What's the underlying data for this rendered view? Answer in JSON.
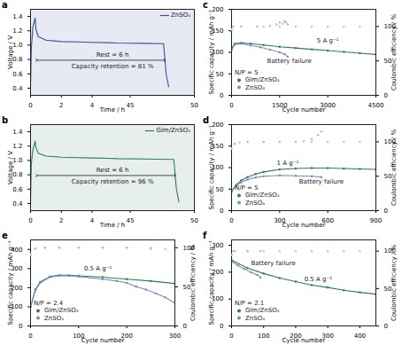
{
  "chart_data": [
    {
      "type": "line",
      "title": "a",
      "x_label": "Time / h",
      "y_label": "Voltage / V",
      "xlim": [
        0,
        50
      ],
      "xbreak": [
        5,
        44
      ],
      "xticks": [
        0,
        2,
        4,
        45,
        50
      ],
      "ylim": [
        0.3,
        1.5
      ],
      "yticks": [
        0.4,
        0.6,
        0.8,
        {
          "value": 1,
          "label": "1.0"
        },
        1.2,
        1.4
      ],
      "legend": "top-right",
      "series": [
        {
          "name": "ZnSO₄",
          "color": "#3b4f9e",
          "line_style": "solid",
          "marker": "none",
          "x": [
            0,
            0.05,
            0.15,
            0.3,
            0.35,
            0.5,
            1,
            2,
            3,
            4,
            5,
            44,
            46,
            47.6,
            47.8,
            48
          ],
          "values": [
            0.42,
            0.95,
            1.25,
            1.38,
            1.22,
            1.12,
            1.07,
            1.05,
            1.045,
            1.04,
            1.035,
            1.03,
            1.025,
            1.02,
            0.6,
            0.42
          ]
        }
      ],
      "annotations": [
        {
          "text": "Rest = 6 h",
          "x": 25,
          "y": 0.86
        },
        {
          "text": "Capacity retention = 81 %",
          "x": 25,
          "y": 0.7
        }
      ],
      "rest_span": {
        "x": [
          0.4,
          47.7
        ],
        "y": 0.79
      }
    },
    {
      "type": "line",
      "title": "b",
      "x_label": "Time / h",
      "y_label": "Voltage / V",
      "xlim": [
        0,
        50
      ],
      "xbreak": [
        5,
        44
      ],
      "xticks": [
        0,
        2,
        4,
        45,
        50
      ],
      "ylim": [
        0.3,
        1.5
      ],
      "yticks": [
        0.4,
        0.6,
        0.8,
        {
          "value": 1,
          "label": "1.0"
        },
        1.2,
        1.4
      ],
      "legend": "top-right",
      "series": [
        {
          "name": "Glm/ZnSO₄",
          "color": "#2f7a5c",
          "line_style": "solid",
          "marker": "none",
          "x": [
            0,
            0.05,
            0.15,
            0.3,
            0.35,
            0.5,
            1,
            2,
            3,
            4,
            5,
            44,
            46,
            48.4,
            48.6,
            48.8
          ],
          "values": [
            0.42,
            0.95,
            1.15,
            1.27,
            1.18,
            1.1,
            1.06,
            1.045,
            1.04,
            1.035,
            1.03,
            1.025,
            1.02,
            1.015,
            0.6,
            0.42
          ]
        }
      ],
      "annotations": [
        {
          "text": "Rest = 6 h",
          "x": 25,
          "y": 0.86
        },
        {
          "text": "Capacity retention = 96 %",
          "x": 25,
          "y": 0.7
        }
      ],
      "rest_span": {
        "x": [
          0.4,
          48.5
        ],
        "y": 0.79
      }
    },
    {
      "type": "scatter",
      "title": "c",
      "x_label": "Cycle number",
      "y_label": "Specific capacity / mAh g⁻¹",
      "y2_label": "Coulombic efficiency / %",
      "xlim": [
        0,
        4500
      ],
      "xticks": [
        0,
        1500,
        3000,
        4500
      ],
      "ylim": [
        0,
        200
      ],
      "yticks": [
        0,
        50,
        100,
        150,
        200
      ],
      "y2lim": [
        0,
        125
      ],
      "y2ticks": [
        0,
        50,
        100
      ],
      "legend": "bottom-left",
      "legend_title": "N/P = 5",
      "series": [
        {
          "name": "Glm/ZnSO₄",
          "color": "#2e7d4f",
          "line_style": "solid",
          "marker": "circle",
          "x": [
            0,
            100,
            300,
            600,
            1000,
            1500,
            2000,
            2500,
            3000,
            3500,
            4000,
            4500
          ],
          "values": [
            108,
            120,
            122,
            120,
            117,
            113,
            110,
            107,
            104,
            101,
            98,
            95
          ]
        },
        {
          "name": "ZnSO₄",
          "color": "#7a8cc8",
          "line_style": "solid",
          "marker": "circle",
          "x": [
            0,
            100,
            300,
            600,
            900,
            1200,
            1500,
            1650,
            1750
          ],
          "values": [
            105,
            118,
            120,
            116,
            112,
            106,
            100,
            96,
            90
          ]
        },
        {
          "name": "Glm/ZnSO₄",
          "axis": "y2",
          "color": "#a8d8a0",
          "line_style": "none",
          "marker": "circle",
          "x": [
            0,
            50,
            300,
            1000,
            1500,
            2000,
            2500,
            3000,
            3500,
            4000,
            4500
          ],
          "values": [
            96,
            100,
            100,
            100,
            100,
            100,
            100,
            100,
            100,
            100,
            100
          ]
        },
        {
          "name": "ZnSO₄",
          "axis": "y2",
          "color": "#aab8e6",
          "line_style": "none",
          "marker": "circle",
          "x": [
            0,
            50,
            300,
            800,
            1200,
            1400,
            1500,
            1600,
            1650,
            1700,
            1750
          ],
          "values": [
            95,
            100,
            100,
            100,
            101,
            103,
            106,
            104,
            108,
            106,
            103
          ]
        }
      ],
      "annotations": [
        {
          "text": "5 A g⁻¹",
          "x": 3000,
          "y": 128
        },
        {
          "text": "Battery failure",
          "x": 1800,
          "y": 80
        }
      ]
    },
    {
      "type": "scatter",
      "title": "d",
      "x_label": "Cycle number",
      "y_label": "Specific capacity / mAh g⁻¹",
      "y2_label": "Coulombic efficiency / %",
      "xlim": [
        0,
        900
      ],
      "xticks": [
        0,
        300,
        600,
        900
      ],
      "ylim": [
        0,
        200
      ],
      "yticks": [
        0,
        50,
        100,
        150,
        200
      ],
      "y2lim": [
        0,
        125
      ],
      "y2ticks": [
        0,
        50,
        100
      ],
      "legend": "bottom-left",
      "legend_title": "N/P = 5",
      "series": [
        {
          "name": "Glm/ZnSO₄",
          "color": "#2e7d4f",
          "line_style": "solid",
          "marker": "circle",
          "x": [
            0,
            30,
            60,
            100,
            150,
            200,
            300,
            400,
            500,
            600,
            700,
            800,
            900
          ],
          "values": [
            45,
            60,
            70,
            78,
            85,
            90,
            96,
            98,
            99,
            99,
            98,
            97,
            96
          ]
        },
        {
          "name": "ZnSO₄",
          "color": "#7a8cc8",
          "line_style": "solid",
          "marker": "circle",
          "x": [
            0,
            30,
            60,
            100,
            150,
            200,
            300,
            400,
            500,
            560
          ],
          "values": [
            45,
            58,
            66,
            72,
            77,
            80,
            82,
            81,
            80,
            78
          ]
        },
        {
          "name": "Glm/ZnSO₄",
          "axis": "y2",
          "color": "#a8d8a0",
          "line_style": "none",
          "marker": "circle",
          "x": [
            0,
            20,
            50,
            100,
            200,
            300,
            400,
            500,
            600,
            700,
            800,
            900
          ],
          "values": [
            90,
            97,
            99,
            100,
            100,
            100,
            100,
            100,
            100,
            100,
            100,
            100
          ]
        },
        {
          "name": "ZnSO₄",
          "axis": "y2",
          "color": "#aab8e6",
          "line_style": "none",
          "marker": "circle",
          "x": [
            0,
            20,
            100,
            200,
            300,
            400,
            450,
            500,
            540,
            560
          ],
          "values": [
            90,
            97,
            100,
            100,
            100,
            100,
            101,
            104,
            110,
            115
          ]
        }
      ],
      "annotations": [
        {
          "text": "1 A g⁻¹",
          "x": 350,
          "y": 110
        },
        {
          "text": "Battery failure",
          "x": 560,
          "y": 68
        }
      ]
    },
    {
      "type": "scatter",
      "title": "e",
      "x_label": "Cycle number",
      "y_label": "Specific capacity / mAh g⁻¹",
      "y2_label": "Coulombic efficiency / %",
      "xlim": [
        0,
        300
      ],
      "xticks": [
        0,
        100,
        200,
        300
      ],
      "ylim": [
        0,
        450
      ],
      "yticks": [
        0,
        100,
        200,
        300,
        400
      ],
      "y2lim": [
        0,
        110
      ],
      "y2ticks": [
        0,
        50,
        100
      ],
      "legend": "bottom-left",
      "legend_title": "N/P = 2.4",
      "series": [
        {
          "name": "Glm/ZnSO₄",
          "color": "#2e7d4f",
          "line_style": "solid",
          "marker": "circle",
          "x": [
            0,
            10,
            20,
            40,
            60,
            80,
            100,
            150,
            200,
            250,
            300
          ],
          "values": [
            100,
            190,
            230,
            258,
            265,
            265,
            262,
            255,
            245,
            235,
            222
          ]
        },
        {
          "name": "ZnSO₄",
          "color": "#7a8cc8",
          "line_style": "solid",
          "marker": "circle",
          "x": [
            0,
            10,
            20,
            40,
            60,
            80,
            100,
            150,
            180,
            200,
            220,
            240,
            260,
            280,
            300
          ],
          "values": [
            100,
            185,
            225,
            255,
            262,
            262,
            258,
            245,
            235,
            225,
            205,
            190,
            170,
            150,
            120
          ]
        },
        {
          "name": "Glm/ZnSO₄",
          "axis": "y2",
          "color": "#a8d8a0",
          "line_style": "none",
          "marker": "circle",
          "x": [
            0,
            10,
            30,
            60,
            100,
            150,
            200,
            250,
            300
          ],
          "values": [
            92,
            99,
            100,
            100,
            100,
            100,
            100,
            100,
            100
          ]
        },
        {
          "name": "ZnSO₄",
          "axis": "y2",
          "color": "#aab8e6",
          "line_style": "none",
          "marker": "circle",
          "x": [
            0,
            10,
            30,
            60,
            100,
            150,
            200,
            250,
            280,
            300
          ],
          "values": [
            90,
            99,
            100,
            100,
            100,
            100,
            100,
            99,
            98,
            97
          ]
        }
      ],
      "annotations": [
        {
          "text": "0.5 A g⁻¹",
          "x": 140,
          "y": 300
        }
      ]
    },
    {
      "type": "scatter",
      "title": "f",
      "x_label": "Cycle number",
      "y_label": "Specific capacity / mAh g⁻¹",
      "y2_label": "Coulombic efficiency / %",
      "xlim": [
        0,
        450
      ],
      "xticks": [
        0,
        100,
        200,
        300,
        400
      ],
      "ylim": [
        0,
        320
      ],
      "yticks": [
        0,
        100,
        200,
        300
      ],
      "y2lim": [
        0,
        115
      ],
      "y2ticks": [
        0,
        50,
        100
      ],
      "legend": "bottom-left",
      "legend_title": "N/P = 2.1",
      "series": [
        {
          "name": "Glm/ZnSO₄",
          "color": "#2e7d4f",
          "line_style": "solid",
          "marker": "circle",
          "x": [
            0,
            50,
            100,
            150,
            200,
            250,
            300,
            350,
            400,
            450
          ],
          "values": [
            245,
            215,
            195,
            178,
            165,
            152,
            143,
            133,
            125,
            118
          ]
        },
        {
          "name": "ZnSO₄",
          "color": "#7a8cc8",
          "line_style": "solid",
          "marker": "circle",
          "x": [
            0,
            20,
            40,
            60,
            80,
            90
          ],
          "values": [
            240,
            225,
            212,
            200,
            190,
            180
          ]
        },
        {
          "name": "Glm/ZnSO₄",
          "axis": "y2",
          "color": "#a8d8a0",
          "line_style": "none",
          "marker": "circle",
          "x": [
            0,
            5,
            50,
            100,
            150,
            200,
            250,
            300,
            350,
            400,
            450
          ],
          "values": [
            95,
            100,
            100,
            100,
            100,
            100,
            100,
            100,
            100,
            100,
            100
          ]
        },
        {
          "name": "ZnSO₄",
          "axis": "y2",
          "color": "#aab8e6",
          "line_style": "none",
          "marker": "circle",
          "x": [
            0,
            10,
            50,
            90
          ],
          "values": [
            95,
            100,
            100,
            100
          ]
        }
      ],
      "annotations": [
        {
          "text": "Battery failure",
          "x": 130,
          "y": 235
        },
        {
          "text": "0.5 A g⁻¹",
          "x": 270,
          "y": 175
        }
      ]
    }
  ]
}
